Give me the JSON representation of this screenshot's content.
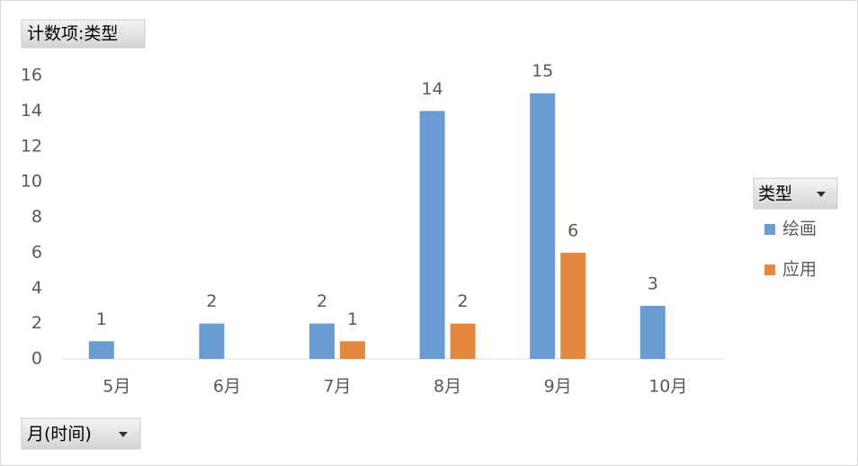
{
  "chart_data": {
    "type": "bar",
    "value_field": "计数项:类型",
    "legend_title": "类型",
    "axis_field": "月(时间)",
    "categories": [
      "5月",
      "6月",
      "7月",
      "8月",
      "9月",
      "10月"
    ],
    "series": [
      {
        "name": "绘画",
        "color": "#6a9bd3",
        "values": [
          1,
          2,
          2,
          14,
          15,
          3
        ]
      },
      {
        "name": "应用",
        "color": "#e5883f",
        "values": [
          null,
          null,
          1,
          2,
          6,
          null
        ]
      }
    ],
    "ylim": [
      0,
      16
    ],
    "yticks": [
      0,
      2,
      4,
      6,
      8,
      10,
      12,
      14,
      16
    ],
    "grid": false,
    "data_labels": true,
    "legend": "right"
  }
}
